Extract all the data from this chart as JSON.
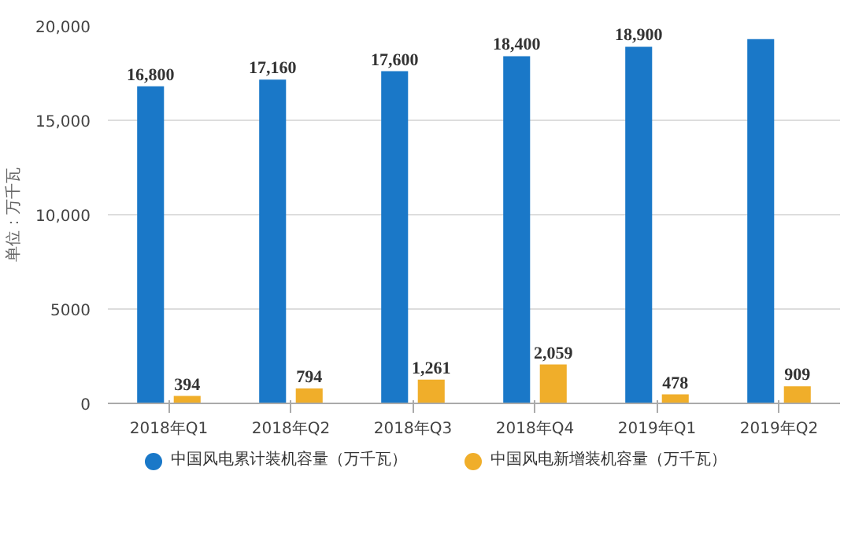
{
  "chart_data": {
    "type": "bar",
    "ylabel": "单位：万千瓦",
    "categories": [
      "2018年Q1",
      "2018年Q2",
      "2018年Q3",
      "2018年Q4",
      "2019年Q1",
      "2019年Q2"
    ],
    "series": [
      {
        "name": "中国风电累计装机容量（万千瓦）",
        "color": "#1a78c8",
        "values": [
          16800,
          17160,
          17600,
          18400,
          18900,
          19300
        ],
        "value_labels": [
          "16,800",
          "17,160",
          "17,600",
          "18,400",
          "18,900",
          null
        ]
      },
      {
        "name": "中国风电新增装机容量（万千瓦）",
        "color": "#f0ae2a",
        "values": [
          394,
          794,
          1261,
          2059,
          478,
          909
        ],
        "value_labels": [
          "394",
          "794",
          "1,261",
          "2,059",
          "478",
          "909"
        ]
      }
    ],
    "ylim": [
      0,
      20000
    ],
    "yticks": [
      {
        "value": 0,
        "label": "0"
      },
      {
        "value": 5000,
        "label": "5000"
      },
      {
        "value": 10000,
        "label": "10,000"
      },
      {
        "value": 15000,
        "label": "15,000"
      },
      {
        "value": 20000,
        "label": "20,000"
      }
    ],
    "grid": "y",
    "legend": "bottom"
  }
}
